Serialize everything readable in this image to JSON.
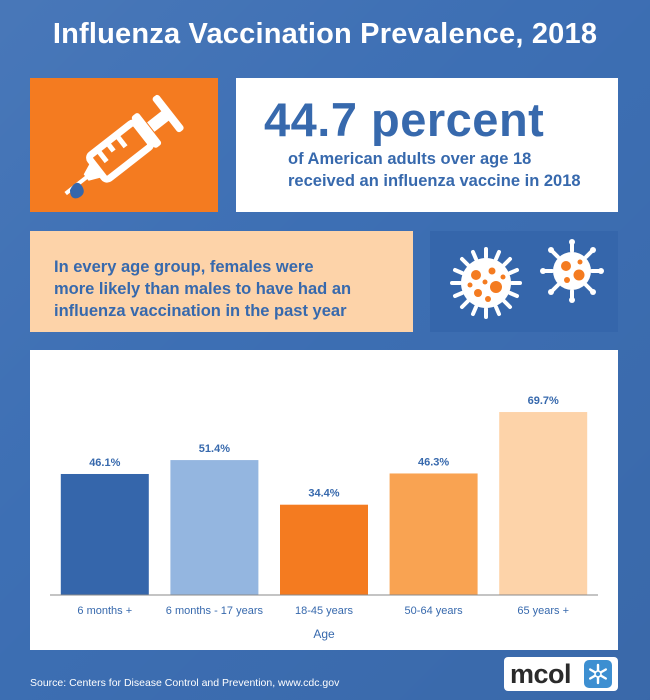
{
  "header": {
    "title": "Influenza Vaccination Prevalence, 2018"
  },
  "highlight": {
    "big_stat": "44.7 percent",
    "sub_line1": "of American adults over age 18",
    "sub_line2": "received an influenza vaccine in 2018",
    "icon": "syringe-icon"
  },
  "note": {
    "line1": "In every age group, females were",
    "line2": "more likely than males to have had an",
    "line3": "influenza vaccination in the past year",
    "icon": "virus-icon"
  },
  "chart_data": {
    "type": "bar",
    "categories": [
      "6 months +",
      "6 months - 17 years",
      "18-45 years",
      "50-64 years",
      "65 years +"
    ],
    "values": [
      46.1,
      51.4,
      34.4,
      46.3,
      69.7
    ],
    "value_labels": [
      "46.1%",
      "51.4%",
      "34.4%",
      "46.3%",
      "69.7%"
    ],
    "colors": [
      "#3566ab",
      "#94b6e0",
      "#f47b20",
      "#f9a352",
      "#fdd3a9"
    ],
    "xlabel": "Age",
    "ylabel": "",
    "ylim": [
      0,
      80
    ],
    "grid": false,
    "legend": "none"
  },
  "footer": {
    "source": "Source: Centers for Disease Control and Prevention, www.cdc.gov",
    "logo_text": "mcol"
  },
  "colors": {
    "background": "#3d6fb4",
    "brand_blue": "#3769ad",
    "orange": "#f47b20",
    "peach": "#fdd3a9"
  }
}
